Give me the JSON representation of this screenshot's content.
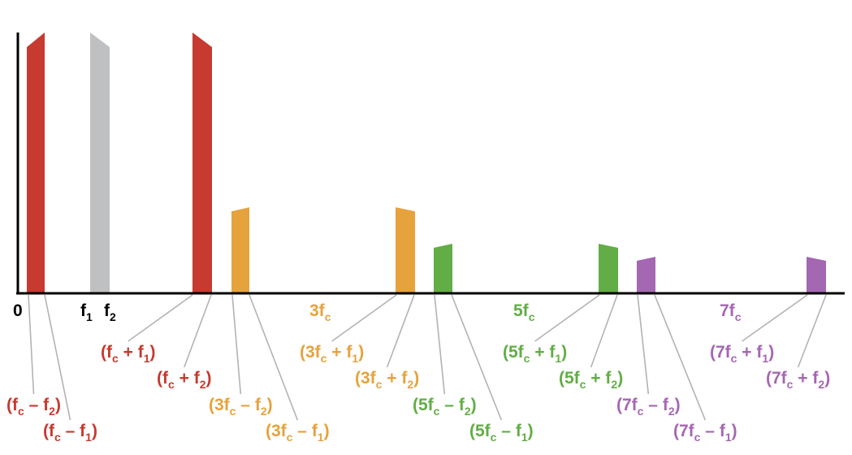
{
  "colors": {
    "red": "#c63a2f",
    "gray": "#bfc0c2",
    "orange": "#e6a23c",
    "green": "#62ad45",
    "purple": "#a467b1",
    "axis": "#000000",
    "leader": "#b3b3b3"
  },
  "axis_labels": {
    "zero": "0",
    "f1": "f",
    "f1_sub": "1",
    "f2": "f",
    "f2_sub": "2"
  },
  "center_labels": [
    {
      "text": "3f",
      "sub": "c",
      "color": "orange"
    },
    {
      "text": "5f",
      "sub": "c",
      "color": "green"
    },
    {
      "text": "7f",
      "sub": "c",
      "color": "purple"
    }
  ],
  "bar_heights": {
    "fundamental": 1.0,
    "third": 0.33,
    "fifth": 0.19,
    "seventh": 0.14
  },
  "sideband_labels": [
    {
      "pre": "(f",
      "sub": "c",
      "post": " – f",
      "sub2": "2",
      "end": ")",
      "color": "red"
    },
    {
      "pre": "(f",
      "sub": "c",
      "post": " – f",
      "sub2": "1",
      "end": ")",
      "color": "red"
    },
    {
      "pre": "(f",
      "sub": "c",
      "post": " + f",
      "sub2": "1",
      "end": ")",
      "color": "red"
    },
    {
      "pre": "(f",
      "sub": "c",
      "post": " + f",
      "sub2": "2",
      "end": ")",
      "color": "red"
    },
    {
      "pre": "(3f",
      "sub": "c",
      "post": " – f",
      "sub2": "2",
      "end": ")",
      "color": "orange"
    },
    {
      "pre": "(3f",
      "sub": "c",
      "post": " – f",
      "sub2": "1",
      "end": ")",
      "color": "orange"
    },
    {
      "pre": "(3f",
      "sub": "c",
      "post": " + f",
      "sub2": "1",
      "end": ")",
      "color": "orange"
    },
    {
      "pre": "(3f",
      "sub": "c",
      "post": " + f",
      "sub2": "2",
      "end": ")",
      "color": "orange"
    },
    {
      "pre": "(5f",
      "sub": "c",
      "post": " – f",
      "sub2": "2",
      "end": ")",
      "color": "green"
    },
    {
      "pre": "(5f",
      "sub": "c",
      "post": " – f",
      "sub2": "1",
      "end": ")",
      "color": "green"
    },
    {
      "pre": "(5f",
      "sub": "c",
      "post": " + f",
      "sub2": "1",
      "end": ")",
      "color": "green"
    },
    {
      "pre": "(5f",
      "sub": "c",
      "post": " + f",
      "sub2": "2",
      "end": ")",
      "color": "green"
    },
    {
      "pre": "(7f",
      "sub": "c",
      "post": " – f",
      "sub2": "2",
      "end": ")",
      "color": "purple"
    },
    {
      "pre": "(7f",
      "sub": "c",
      "post": " – f",
      "sub2": "1",
      "end": ")",
      "color": "purple"
    },
    {
      "pre": "(7f",
      "sub": "c",
      "post": " + f",
      "sub2": "1",
      "end": ")",
      "color": "purple"
    },
    {
      "pre": "(7f",
      "sub": "c",
      "post": " + f",
      "sub2": "2",
      "end": ")",
      "color": "purple"
    }
  ]
}
